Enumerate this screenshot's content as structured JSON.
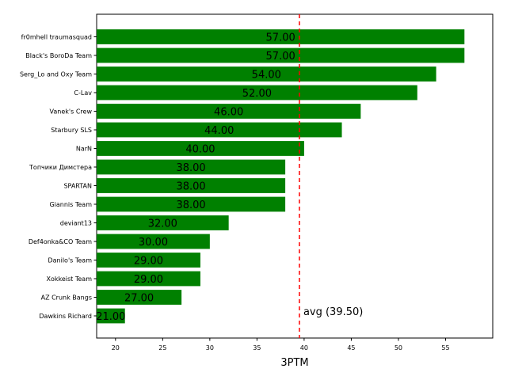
{
  "chart_data": {
    "type": "bar",
    "orientation": "horizontal",
    "categories": [
      "fr0mhell traumasquad",
      "Black's BoroDa Team",
      "Serg_Lo and Oxy Team",
      "C-Lav",
      "Vanek's Crew",
      "Starbury SLS",
      "NarN",
      "Топчики Димстера",
      "SPARTAN",
      "Giannis Team",
      "deviant13",
      "Def4onka&CO Team",
      "Danilo's Team",
      "Xokkeist Team",
      "AZ Crunk Bangs",
      "Dawkins Richard"
    ],
    "values": [
      57,
      57,
      54,
      52,
      46,
      44,
      40,
      38,
      38,
      38,
      32,
      30,
      29,
      29,
      27,
      21
    ],
    "value_labels": [
      "57.00",
      "57.00",
      "54.00",
      "52.00",
      "46.00",
      "44.00",
      "40.00",
      "38.00",
      "38.00",
      "38.00",
      "32.00",
      "30.00",
      "29.00",
      "29.00",
      "27.00",
      "21.00"
    ],
    "xlabel": "3PTM",
    "xlim": [
      18,
      60
    ],
    "xticks": [
      "20",
      "25",
      "30",
      "35",
      "40",
      "45",
      "50",
      "55"
    ],
    "bar_color": "#008000",
    "average": 39.5,
    "average_label": "avg (39.50)",
    "average_color": "#ff0000",
    "grid": false
  }
}
